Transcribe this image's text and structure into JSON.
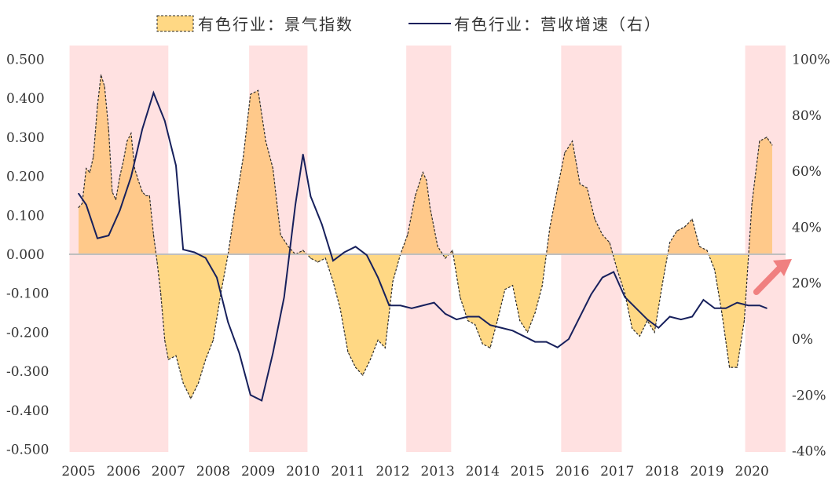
{
  "chart_data": {
    "type": "area+line",
    "title": "",
    "legend": {
      "position": "top",
      "series1_label": "有色行业：景气指数",
      "series2_label": "有色行业：营收增速（右）"
    },
    "colors": {
      "area_fill": "#ffd884",
      "area_fill_dense": "#ffc98a",
      "area_stroke": "#2b2b2b",
      "line": "#17205c",
      "shade": "#ffe1e1",
      "zero_line": "#bfbfbf",
      "arrow": "#f08080"
    },
    "left_axis": {
      "range": [
        -0.5,
        0.5
      ],
      "ticks": [
        0.5,
        0.4,
        0.3,
        0.2,
        0.1,
        0,
        -0.1,
        -0.2,
        -0.3,
        -0.4,
        -0.5
      ],
      "tick_labels": [
        "0.500",
        "0.400",
        "0.300",
        "0.200",
        "0.100",
        "0.000",
        "-0.100",
        "-0.200",
        "-0.300",
        "-0.400",
        "-0.500"
      ]
    },
    "right_axis": {
      "range": [
        -40,
        100
      ],
      "ticks": [
        100,
        80,
        60,
        40,
        20,
        0,
        -20,
        -40
      ],
      "tick_labels": [
        "100%",
        "80%",
        "60%",
        "40%",
        "20%",
        "0%",
        "-20%",
        "-40%"
      ]
    },
    "x_axis": {
      "range": [
        2005,
        2020.75
      ],
      "year_labels": [
        "2005",
        "2006",
        "2007",
        "2008",
        "2009",
        "2010",
        "2011",
        "2012",
        "2013",
        "2014",
        "2015",
        "2016",
        "2017",
        "2018",
        "2019",
        "2020"
      ]
    },
    "shaded_periods": [
      [
        2004.8,
        2007.0
      ],
      [
        2008.8,
        2010.1
      ],
      [
        2012.3,
        2013.3
      ],
      [
        2015.75,
        2017.1
      ],
      [
        2019.85,
        2020.75
      ]
    ],
    "series_index": {
      "name": "有色行业：景气指数",
      "axis": "left",
      "x": [
        2005.0,
        2005.08,
        2005.17,
        2005.25,
        2005.33,
        2005.42,
        2005.5,
        2005.58,
        2005.67,
        2005.75,
        2005.83,
        2005.92,
        2006.0,
        2006.08,
        2006.17,
        2006.25,
        2006.33,
        2006.42,
        2006.5,
        2006.58,
        2006.67,
        2006.75,
        2006.83,
        2006.92,
        2007.0,
        2007.17,
        2007.33,
        2007.5,
        2007.67,
        2007.83,
        2008.0,
        2008.17,
        2008.33,
        2008.5,
        2008.67,
        2008.83,
        2009.0,
        2009.17,
        2009.33,
        2009.42,
        2009.5,
        2009.67,
        2009.83,
        2010.0,
        2010.17,
        2010.33,
        2010.5,
        2010.67,
        2010.83,
        2011.0,
        2011.17,
        2011.33,
        2011.5,
        2011.67,
        2011.83,
        2012.0,
        2012.17,
        2012.33,
        2012.5,
        2012.67,
        2012.75,
        2012.83,
        2013.0,
        2013.17,
        2013.33,
        2013.5,
        2013.67,
        2013.83,
        2014.0,
        2014.17,
        2014.33,
        2014.5,
        2014.67,
        2014.83,
        2015.0,
        2015.17,
        2015.33,
        2015.5,
        2015.67,
        2015.83,
        2016.0,
        2016.17,
        2016.33,
        2016.5,
        2016.67,
        2016.83,
        2017.0,
        2017.17,
        2017.33,
        2017.5,
        2017.67,
        2017.83,
        2018.0,
        2018.17,
        2018.33,
        2018.5,
        2018.67,
        2018.83,
        2019.0,
        2019.17,
        2019.33,
        2019.5,
        2019.67,
        2019.83,
        2020.0,
        2020.17,
        2020.33,
        2020.45
      ],
      "values": [
        0.12,
        0.13,
        0.22,
        0.21,
        0.25,
        0.38,
        0.46,
        0.43,
        0.32,
        0.16,
        0.14,
        0.2,
        0.24,
        0.29,
        0.31,
        0.22,
        0.19,
        0.16,
        0.15,
        0.15,
        0.05,
        -0.02,
        -0.1,
        -0.22,
        -0.27,
        -0.26,
        -0.33,
        -0.37,
        -0.33,
        -0.27,
        -0.22,
        -0.1,
        0.0,
        0.13,
        0.25,
        0.41,
        0.42,
        0.29,
        0.22,
        0.13,
        0.05,
        0.02,
        0.0,
        0.01,
        -0.01,
        -0.02,
        -0.01,
        -0.07,
        -0.14,
        -0.25,
        -0.29,
        -0.31,
        -0.27,
        -0.22,
        -0.24,
        -0.07,
        0.0,
        0.05,
        0.15,
        0.21,
        0.19,
        0.12,
        0.02,
        -0.01,
        0.01,
        -0.11,
        -0.17,
        -0.18,
        -0.23,
        -0.24,
        -0.17,
        -0.09,
        -0.08,
        -0.17,
        -0.2,
        -0.15,
        -0.08,
        0.07,
        0.17,
        0.26,
        0.29,
        0.18,
        0.17,
        0.09,
        0.05,
        0.03,
        -0.04,
        -0.1,
        -0.19,
        -0.21,
        -0.17,
        -0.2,
        -0.08,
        0.03,
        0.06,
        0.07,
        0.09,
        0.02,
        0.01,
        -0.04,
        -0.15,
        -0.29,
        -0.29,
        -0.17,
        0.13,
        0.29,
        0.3,
        0.28
      ]
    },
    "series_growth": {
      "name": "有色行业：营收增速（右）",
      "axis": "right",
      "x": [
        2005.0,
        2005.17,
        2005.42,
        2005.67,
        2005.92,
        2006.17,
        2006.42,
        2006.67,
        2006.92,
        2007.17,
        2007.33,
        2007.58,
        2007.83,
        2008.08,
        2008.33,
        2008.58,
        2008.83,
        2009.08,
        2009.33,
        2009.58,
        2009.83,
        2010.0,
        2010.17,
        2010.42,
        2010.67,
        2010.92,
        2011.17,
        2011.42,
        2011.67,
        2011.92,
        2012.17,
        2012.42,
        2012.67,
        2012.92,
        2013.17,
        2013.42,
        2013.67,
        2013.92,
        2014.17,
        2014.42,
        2014.67,
        2014.92,
        2015.17,
        2015.42,
        2015.67,
        2015.92,
        2016.17,
        2016.42,
        2016.67,
        2016.92,
        2017.17,
        2017.42,
        2017.67,
        2017.92,
        2018.17,
        2018.42,
        2018.67,
        2018.92,
        2019.17,
        2019.42,
        2019.67,
        2019.92,
        2020.17,
        2020.33
      ],
      "values": [
        52,
        48,
        36,
        37,
        46,
        58,
        75,
        88,
        78,
        62,
        32,
        31,
        29,
        22,
        6,
        -5,
        -20,
        -22,
        -5,
        15,
        48,
        66,
        51,
        41,
        28,
        31,
        33,
        30,
        22,
        12,
        12,
        11,
        12,
        13,
        9,
        7,
        8,
        8,
        5,
        4,
        3,
        1,
        -1,
        -1,
        -3,
        0,
        8,
        16,
        22,
        24,
        15,
        11,
        7,
        4,
        8,
        7,
        8,
        14,
        11,
        11,
        13,
        12,
        12,
        11
      ]
    },
    "annotation": "upward arrow at 2020"
  }
}
